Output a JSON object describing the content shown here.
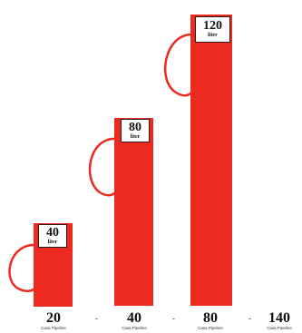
{
  "tanks": [
    {
      "value": "40",
      "unit": "liter",
      "color": "#ec2a1f"
    },
    {
      "value": "80",
      "unit": "liter",
      "color": "#ec2a1f"
    },
    {
      "value": "120",
      "unit": "liter",
      "color": "#ec2a1f"
    }
  ],
  "bottom_row": [
    {
      "value": "20",
      "sub": "Casa Pipeline"
    },
    {
      "value": "40",
      "sub": "Casa Pipeline"
    },
    {
      "value": "80",
      "sub": "Casa Pipeline"
    },
    {
      "value": "140",
      "sub": "Casa Pipeline"
    }
  ],
  "separator": "-",
  "icon": "fuel-pump-icon"
}
